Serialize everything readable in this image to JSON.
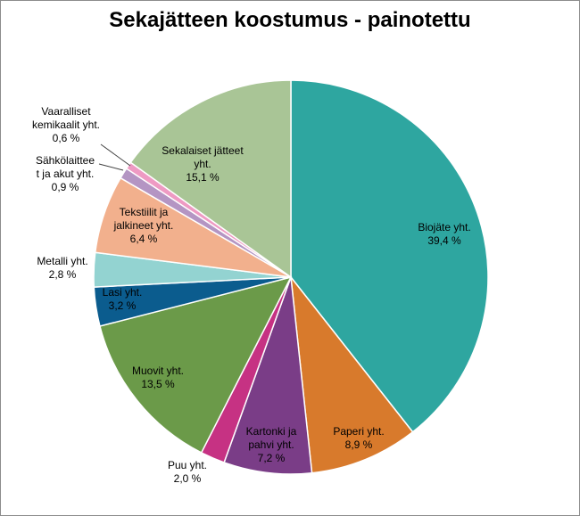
{
  "chart_data": {
    "type": "pie",
    "title": "Sekajätteen koostumus - painotettu",
    "slices": [
      {
        "label": "Biojäte yht.",
        "value_label": "39,4 %",
        "value": 39.4,
        "color": "#2ea6a0"
      },
      {
        "label": "Paperi yht.",
        "value_label": "8,9 %",
        "value": 8.9,
        "color": "#d87a2c"
      },
      {
        "label": "Kartonki ja pahvi yht.",
        "value_label": "7,2 %",
        "value": 7.2,
        "color": "#7a3d87"
      },
      {
        "label": "Puu yht.",
        "value_label": "2,0 %",
        "value": 2.0,
        "color": "#c63283"
      },
      {
        "label": "Muovit yht.",
        "value_label": "13,5 %",
        "value": 13.5,
        "color": "#6b9a49"
      },
      {
        "label": "Lasi yht.",
        "value_label": "3,2 %",
        "value": 3.2,
        "color": "#0b5c8e"
      },
      {
        "label": "Metalli yht.",
        "value_label": "2,8 %",
        "value": 2.8,
        "color": "#93d3d1"
      },
      {
        "label": "Tekstiilit ja jalkineet yht.",
        "value_label": "6,4 %",
        "value": 6.4,
        "color": "#f2b08d"
      },
      {
        "label": "Sähkölaitteet ja akut yht.",
        "value_label": "0,9 %",
        "value": 0.9,
        "color": "#b495c3"
      },
      {
        "label": "Vaaralliset kemikaalit yht.",
        "value_label": "0,6 %",
        "value": 0.6,
        "color": "#ee9ac3"
      },
      {
        "label": "Sekalaiset jätteet yht.",
        "value_label": "15,1 %",
        "value": 15.1,
        "color": "#a9c596"
      }
    ]
  }
}
